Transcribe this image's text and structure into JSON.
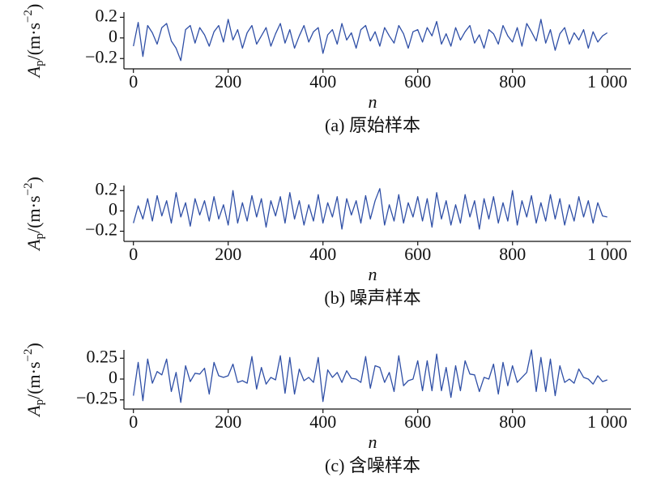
{
  "chart_data": [
    {
      "type": "line",
      "caption": "(a) 原始样本",
      "xlabel": "n",
      "ylabel": [
        "A",
        "p",
        "/(m·s",
        "−2",
        ")"
      ],
      "color": "#2f4fa6",
      "xlim": [
        -20,
        1050
      ],
      "xticks": [
        0,
        200,
        400,
        600,
        800,
        {
          "value": 1000,
          "label": "1 000"
        }
      ],
      "ylim": [
        -0.3,
        0.25
      ],
      "yticks": [
        {
          "value": -0.2,
          "label": "−0.2"
        },
        0,
        0.2
      ],
      "x": [
        0,
        10,
        20,
        30,
        40,
        50,
        60,
        70,
        80,
        90,
        100,
        110,
        120,
        130,
        140,
        150,
        160,
        170,
        180,
        190,
        200,
        210,
        220,
        230,
        240,
        250,
        260,
        270,
        280,
        290,
        300,
        310,
        320,
        330,
        340,
        350,
        360,
        370,
        380,
        390,
        400,
        410,
        420,
        430,
        440,
        450,
        460,
        470,
        480,
        490,
        500,
        510,
        520,
        530,
        540,
        550,
        560,
        570,
        580,
        590,
        600,
        610,
        620,
        630,
        640,
        650,
        660,
        670,
        680,
        690,
        700,
        710,
        720,
        730,
        740,
        750,
        760,
        770,
        780,
        790,
        800,
        810,
        820,
        830,
        840,
        850,
        860,
        870,
        880,
        890,
        900,
        910,
        920,
        930,
        940,
        950,
        960,
        970,
        980,
        990,
        1000
      ],
      "values": [
        -0.08,
        0.15,
        -0.18,
        0.12,
        0.05,
        -0.06,
        0.1,
        0.14,
        -0.03,
        -0.1,
        -0.22,
        0.08,
        0.12,
        -0.05,
        0.1,
        0.03,
        -0.08,
        0.06,
        0.12,
        -0.04,
        0.18,
        -0.02,
        0.08,
        -0.1,
        0.05,
        0.12,
        -0.06,
        0.02,
        0.1,
        -0.08,
        0.04,
        0.14,
        -0.05,
        0.08,
        -0.1,
        0.02,
        0.12,
        -0.04,
        0.06,
        0.1,
        -0.15,
        0.03,
        0.08,
        -0.06,
        0.14,
        -0.02,
        0.05,
        -0.1,
        0.08,
        0.12,
        -0.03,
        0.06,
        -0.08,
        0.1,
        0.02,
        -0.05,
        0.12,
        0.04,
        -0.1,
        0.06,
        0.08,
        -0.04,
        0.1,
        0.02,
        0.16,
        -0.06,
        0.04,
        -0.08,
        0.1,
        -0.02,
        0.06,
        0.12,
        -0.05,
        0.03,
        -0.1,
        0.08,
        0.04,
        -0.06,
        0.12,
        0.02,
        -0.04,
        0.1,
        -0.08,
        0.14,
        0.06,
        -0.03,
        0.18,
        -0.05,
        0.08,
        -0.12,
        0.04,
        0.1,
        -0.06,
        0.05,
        -0.02,
        0.08,
        -0.1,
        0.06,
        -0.04,
        0.02,
        0.05
      ]
    },
    {
      "type": "line",
      "caption": "(b) 噪声样本",
      "xlabel": "n",
      "ylabel": [
        "A",
        "p",
        "/(m·s",
        "−2",
        ")"
      ],
      "color": "#2f4fa6",
      "xlim": [
        -20,
        1050
      ],
      "xticks": [
        0,
        200,
        400,
        600,
        800,
        {
          "value": 1000,
          "label": "1 000"
        }
      ],
      "ylim": [
        -0.3,
        0.25
      ],
      "yticks": [
        {
          "value": -0.2,
          "label": "−0.2"
        },
        0,
        0.2
      ],
      "x": [
        0,
        10,
        20,
        30,
        40,
        50,
        60,
        70,
        80,
        90,
        100,
        110,
        120,
        130,
        140,
        150,
        160,
        170,
        180,
        190,
        200,
        210,
        220,
        230,
        240,
        250,
        260,
        270,
        280,
        290,
        300,
        310,
        320,
        330,
        340,
        350,
        360,
        370,
        380,
        390,
        400,
        410,
        420,
        430,
        440,
        450,
        460,
        470,
        480,
        490,
        500,
        510,
        520,
        530,
        540,
        550,
        560,
        570,
        580,
        590,
        600,
        610,
        620,
        630,
        640,
        650,
        660,
        670,
        680,
        690,
        700,
        710,
        720,
        730,
        740,
        750,
        760,
        770,
        780,
        790,
        800,
        810,
        820,
        830,
        840,
        850,
        860,
        870,
        880,
        890,
        900,
        910,
        920,
        930,
        940,
        950,
        960,
        970,
        980,
        990,
        1000
      ],
      "values": [
        -0.12,
        0.05,
        -0.08,
        0.12,
        -0.1,
        0.15,
        -0.05,
        0.1,
        -0.12,
        0.18,
        -0.06,
        0.08,
        -0.15,
        0.12,
        -0.04,
        0.1,
        -0.1,
        0.14,
        -0.08,
        0.06,
        -0.14,
        0.2,
        -0.12,
        0.08,
        -0.1,
        0.15,
        -0.06,
        0.12,
        -0.16,
        0.1,
        -0.05,
        0.14,
        -0.12,
        0.18,
        -0.08,
        0.1,
        -0.14,
        0.06,
        -0.1,
        0.16,
        -0.12,
        0.08,
        -0.06,
        0.14,
        -0.18,
        0.12,
        -0.04,
        0.1,
        -0.12,
        0.15,
        -0.08,
        0.1,
        0.22,
        -0.14,
        0.06,
        -0.1,
        0.16,
        -0.12,
        0.08,
        -0.06,
        0.14,
        -0.1,
        0.12,
        -0.16,
        0.18,
        -0.08,
        0.1,
        -0.14,
        0.06,
        -0.12,
        0.16,
        -0.06,
        0.1,
        -0.18,
        0.12,
        -0.08,
        0.14,
        -0.12,
        0.08,
        -0.1,
        0.2,
        -0.14,
        0.1,
        -0.06,
        0.15,
        -0.12,
        0.08,
        -0.1,
        0.16,
        -0.08,
        0.12,
        -0.14,
        0.06,
        -0.1,
        0.14,
        -0.06,
        0.1,
        -0.12,
        0.08,
        -0.05,
        -0.06
      ]
    },
    {
      "type": "line",
      "caption": "(c) 含噪样本",
      "xlabel": "n",
      "ylabel": [
        "A",
        "p",
        "/(m·s",
        "−2",
        ")"
      ],
      "color": "#2f4fa6",
      "xlim": [
        -20,
        1050
      ],
      "xticks": [
        0,
        200,
        400,
        600,
        800,
        {
          "value": 1000,
          "label": "1 000"
        }
      ],
      "ylim": [
        -0.36,
        0.35
      ],
      "yticks": [
        {
          "value": -0.25,
          "label": "−0.25"
        },
        0,
        0.25
      ],
      "x": [
        0,
        10,
        20,
        30,
        40,
        50,
        60,
        70,
        80,
        90,
        100,
        110,
        120,
        130,
        140,
        150,
        160,
        170,
        180,
        190,
        200,
        210,
        220,
        230,
        240,
        250,
        260,
        270,
        280,
        290,
        300,
        310,
        320,
        330,
        340,
        350,
        360,
        370,
        380,
        390,
        400,
        410,
        420,
        430,
        440,
        450,
        460,
        470,
        480,
        490,
        500,
        510,
        520,
        530,
        540,
        550,
        560,
        570,
        580,
        590,
        600,
        610,
        620,
        630,
        640,
        650,
        660,
        670,
        680,
        690,
        700,
        710,
        720,
        730,
        740,
        750,
        760,
        770,
        780,
        790,
        800,
        810,
        820,
        830,
        840,
        850,
        860,
        870,
        880,
        890,
        900,
        910,
        920,
        930,
        940,
        950,
        960,
        970,
        980,
        990,
        1000
      ],
      "values": [
        -0.2,
        0.2,
        -0.26,
        0.24,
        -0.05,
        0.09,
        0.05,
        0.24,
        -0.15,
        0.08,
        -0.28,
        0.16,
        -0.03,
        0.07,
        0.06,
        0.13,
        -0.18,
        0.2,
        0.04,
        0.02,
        0.04,
        0.18,
        -0.04,
        -0.02,
        -0.05,
        0.27,
        -0.12,
        0.14,
        -0.06,
        0.02,
        -0.01,
        0.28,
        -0.17,
        0.26,
        -0.18,
        0.12,
        -0.02,
        0.02,
        -0.04,
        0.26,
        -0.27,
        0.11,
        0.02,
        0.08,
        -0.04,
        0.1,
        0.01,
        0,
        -0.04,
        0.27,
        -0.11,
        0.16,
        0.14,
        -0.04,
        0.08,
        -0.15,
        0.28,
        -0.08,
        -0.02,
        0,
        0.22,
        -0.14,
        0.22,
        -0.14,
        0.3,
        -0.14,
        0.14,
        -0.22,
        0.16,
        -0.14,
        0.22,
        0.06,
        0.05,
        -0.15,
        0.02,
        0,
        0.18,
        -0.18,
        0.2,
        -0.08,
        0.16,
        -0.04,
        0.02,
        0.08,
        0.35,
        -0.15,
        0.26,
        -0.15,
        0.24,
        -0.2,
        0.16,
        -0.04,
        0,
        -0.05,
        0.12,
        0.02,
        0,
        -0.06,
        0.04,
        -0.03,
        -0.01
      ]
    }
  ]
}
